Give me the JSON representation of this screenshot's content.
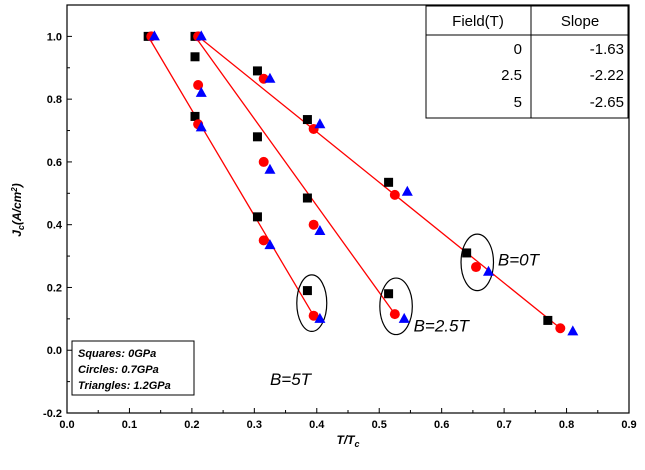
{
  "chart_data": {
    "type": "scatter",
    "xlabel": "T/T",
    "xlabel_sub": "c",
    "ylabel": "J",
    "ylabel_sub": "c",
    "ylabel_unit_pre": "(A/cm",
    "ylabel_unit_sup": "2",
    "ylabel_unit_post": ")",
    "xlim": [
      0.0,
      0.9
    ],
    "ylim": [
      -0.2,
      1.1
    ],
    "xticks": [
      "0.0",
      "0.1",
      "0.2",
      "0.3",
      "0.4",
      "0.5",
      "0.6",
      "0.7",
      "0.8",
      "0.9"
    ],
    "yticks": [
      "-0.2",
      "0.0",
      "0.2",
      "0.4",
      "0.6",
      "0.8",
      "1.0"
    ],
    "xtick_values": [
      0.0,
      0.1,
      0.2,
      0.3,
      0.4,
      0.5,
      0.6,
      0.7,
      0.8,
      0.9
    ],
    "ytick_values": [
      -0.2,
      0.0,
      0.2,
      0.4,
      0.6,
      0.8,
      1.0
    ],
    "grid": false,
    "series": [
      {
        "marker": "square",
        "color": "#000000",
        "points": [
          [
            0.13,
            1.0
          ],
          [
            0.205,
            0.935
          ],
          [
            0.205,
            0.745
          ],
          [
            0.305,
            0.425
          ],
          [
            0.385,
            0.19
          ],
          [
            0.205,
            1.0
          ],
          [
            0.305,
            0.68
          ],
          [
            0.385,
            0.485
          ],
          [
            0.515,
            0.18
          ],
          [
            0.305,
            0.89
          ],
          [
            0.385,
            0.735
          ],
          [
            0.515,
            0.535
          ],
          [
            0.64,
            0.31
          ],
          [
            0.77,
            0.095
          ]
        ]
      },
      {
        "marker": "circle",
        "color": "#ff0000",
        "points": [
          [
            0.135,
            1.0
          ],
          [
            0.21,
            0.845
          ],
          [
            0.21,
            0.72
          ],
          [
            0.315,
            0.35
          ],
          [
            0.395,
            0.11
          ],
          [
            0.21,
            1.0
          ],
          [
            0.315,
            0.6
          ],
          [
            0.395,
            0.4
          ],
          [
            0.525,
            0.115
          ],
          [
            0.315,
            0.865
          ],
          [
            0.395,
            0.705
          ],
          [
            0.525,
            0.495
          ],
          [
            0.655,
            0.265
          ],
          [
            0.79,
            0.07
          ]
        ]
      },
      {
        "marker": "triangle",
        "color": "#0000ff",
        "points": [
          [
            0.14,
            1.0
          ],
          [
            0.215,
            0.82
          ],
          [
            0.215,
            0.71
          ],
          [
            0.325,
            0.335
          ],
          [
            0.405,
            0.1
          ],
          [
            0.215,
            1.0
          ],
          [
            0.325,
            0.575
          ],
          [
            0.405,
            0.38
          ],
          [
            0.54,
            0.1
          ],
          [
            0.325,
            0.865
          ],
          [
            0.405,
            0.72
          ],
          [
            0.545,
            0.505
          ],
          [
            0.675,
            0.25
          ],
          [
            0.81,
            0.06
          ]
        ]
      }
    ],
    "fit_lines": [
      {
        "x": [
          0.13,
          0.395
        ],
        "y": [
          1.0,
          0.11
        ]
      },
      {
        "x": [
          0.205,
          0.525
        ],
        "y": [
          1.0,
          0.115
        ]
      },
      {
        "x": [
          0.21,
          0.79
        ],
        "y": [
          1.0,
          0.07
        ]
      }
    ],
    "fit_color": "#ff0000",
    "ellipses": [
      {
        "cx": 0.392,
        "cy": 0.15,
        "rx": 0.024,
        "ry": 0.09
      },
      {
        "cx": 0.527,
        "cy": 0.14,
        "rx": 0.026,
        "ry": 0.09
      },
      {
        "cx": 0.657,
        "cy": 0.28,
        "rx": 0.026,
        "ry": 0.09
      }
    ],
    "annotations": [
      {
        "text": "B=5T",
        "x": 0.325,
        "y": -0.11
      },
      {
        "text": "B=2.5T",
        "x": 0.555,
        "y": 0.06
      },
      {
        "text": "B=0T",
        "x": 0.69,
        "y": 0.27
      }
    ],
    "legend": {
      "entries": [
        "Squares: 0GPa",
        "Circles: 0.7GPa",
        "Triangles: 1.2GPa"
      ],
      "placement": "bottom-left"
    },
    "table": {
      "headers": [
        "Field(T)",
        "Slope"
      ],
      "rows": [
        [
          "0",
          "-1.63"
        ],
        [
          "2.5",
          "-2.22"
        ],
        [
          "5",
          "-2.65"
        ]
      ],
      "placement": "top-right"
    }
  }
}
